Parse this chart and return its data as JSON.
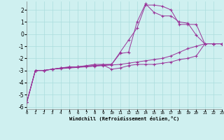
{
  "xlabel": "Windchill (Refroidissement éolien,°C)",
  "xlim": [
    0,
    23
  ],
  "ylim": [
    -6.2,
    2.7
  ],
  "yticks": [
    -6,
    -5,
    -4,
    -3,
    -2,
    -1,
    0,
    1,
    2
  ],
  "xticks": [
    0,
    1,
    2,
    3,
    4,
    5,
    6,
    7,
    8,
    9,
    10,
    11,
    12,
    13,
    14,
    15,
    16,
    17,
    18,
    19,
    20,
    21,
    22,
    23
  ],
  "bg_color": "#cff0f0",
  "grid_color": "#aadddd",
  "line_color": "#993399",
  "series": [
    {
      "x": [
        0,
        1,
        2,
        3,
        4,
        5,
        6,
        7,
        8,
        9,
        10,
        11,
        12,
        13,
        14,
        15,
        16,
        17,
        18,
        19,
        20,
        21,
        22,
        23
      ],
      "y": [
        -5.6,
        -3.0,
        -3.0,
        -2.9,
        -2.85,
        -2.8,
        -2.75,
        -2.7,
        -2.65,
        -2.6,
        -2.55,
        -2.5,
        -2.4,
        -2.3,
        -2.2,
        -2.1,
        -2.0,
        -1.8,
        -1.5,
        -1.2,
        -1.0,
        -0.8,
        -0.8,
        -0.8
      ]
    },
    {
      "x": [
        0,
        1,
        2,
        3,
        4,
        5,
        6,
        7,
        8,
        9,
        10,
        11,
        12,
        13,
        14,
        15,
        16,
        17,
        18,
        19,
        20,
        21,
        22,
        23
      ],
      "y": [
        -5.6,
        -3.0,
        -3.0,
        -2.9,
        -2.8,
        -2.75,
        -2.7,
        -2.65,
        -2.6,
        -2.55,
        -2.9,
        -2.8,
        -2.6,
        -2.5,
        -2.5,
        -2.5,
        -2.4,
        -2.3,
        -2.1,
        -2.0,
        -1.8,
        -0.8,
        -0.8,
        -0.8
      ]
    },
    {
      "x": [
        0,
        1,
        2,
        3,
        4,
        5,
        6,
        7,
        8,
        9,
        10,
        11,
        12,
        13,
        14,
        15,
        16,
        17,
        18,
        19,
        20,
        21,
        22,
        23
      ],
      "y": [
        -5.6,
        -3.0,
        -3.0,
        -2.9,
        -2.8,
        -2.7,
        -2.7,
        -2.6,
        -2.5,
        -2.5,
        -2.5,
        -1.6,
        -1.5,
        1.0,
        2.5,
        1.8,
        1.5,
        1.5,
        1.0,
        0.9,
        -0.1,
        -0.8,
        -0.8,
        -0.8
      ]
    },
    {
      "x": [
        0,
        1,
        2,
        3,
        4,
        5,
        6,
        7,
        8,
        9,
        10,
        11,
        12,
        13,
        14,
        15,
        16,
        17,
        18,
        19,
        20,
        21,
        22,
        23
      ],
      "y": [
        -5.6,
        -3.0,
        -3.0,
        -2.9,
        -2.8,
        -2.75,
        -2.7,
        -2.65,
        -2.6,
        -2.55,
        -2.5,
        -1.5,
        -0.5,
        0.5,
        2.4,
        2.4,
        2.3,
        2.0,
        0.8,
        0.8,
        0.8,
        -0.8,
        -0.8,
        -0.8
      ]
    }
  ]
}
